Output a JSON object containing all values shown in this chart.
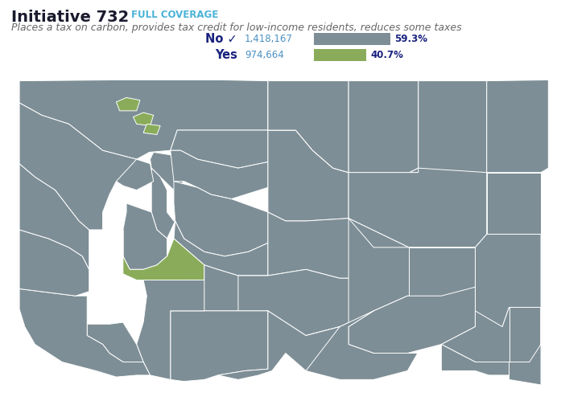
{
  "title_bold": "Initiative 732",
  "title_tag": "FULL COVERAGE",
  "subtitle": "Places a tax on carbon, provides tax credit for low-income residents, reduces some taxes",
  "no_label": "No ✓",
  "yes_label": "Yes",
  "no_votes": "1,418,167",
  "yes_votes": "974,664",
  "no_pct": "59.3%",
  "yes_pct": "40.7%",
  "no_pct_val": 59.3,
  "yes_pct_val": 40.7,
  "no_color": "#7d8e96",
  "yes_color": "#8aac5a",
  "map_default_color": "#7d8e96",
  "map_yes_color": "#8aac5a",
  "map_border_color": "#ffffff",
  "title_color": "#1a1a2e",
  "tag_color": "#4ab3d8",
  "subtitle_color": "#666666",
  "vote_label_color": "#1a237e",
  "vote_number_color": "#4a90c4",
  "bg_color": "#ffffff"
}
